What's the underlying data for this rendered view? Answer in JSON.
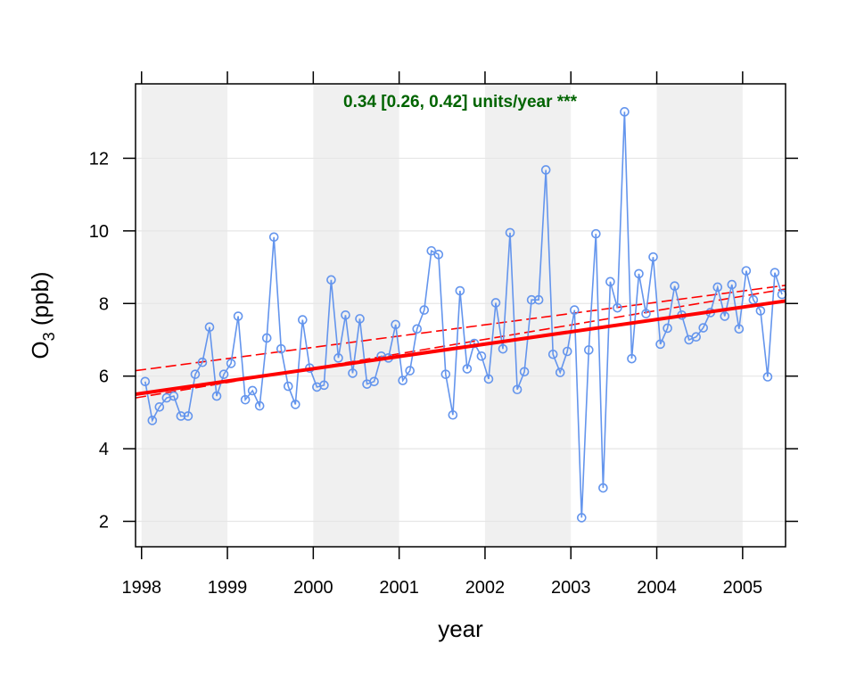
{
  "chart_data": {
    "type": "line",
    "xlabel": "year",
    "ylabel": "O",
    "ylabel_sub": "3",
    "ylabel_unit": " (ppb)",
    "xlim": [
      1997.93,
      2005.5
    ],
    "ylim": [
      1.3,
      14.05
    ],
    "x_ticks": [
      1998,
      1999,
      2000,
      2001,
      2002,
      2003,
      2004,
      2005
    ],
    "x_tick_labels": [
      "1998",
      "1999",
      "2000",
      "2001",
      "2002",
      "2003",
      "2004",
      "2005"
    ],
    "y_ticks": [
      2,
      4,
      6,
      8,
      10,
      12
    ],
    "y_tick_labels": [
      "2",
      "4",
      "6",
      "8",
      "10",
      "12"
    ],
    "grid": true,
    "shaded_year_bands": [
      [
        1998,
        1999
      ],
      [
        2000,
        2001
      ],
      [
        2002,
        2003
      ],
      [
        2004,
        2005
      ]
    ],
    "annotation": "0.34 [0.26, 0.42] units/year ***",
    "series": [
      {
        "color": "#6495ED",
        "x_start": 1998.042,
        "x_step": 0.08333,
        "values": [
          5.85,
          4.78,
          5.15,
          5.4,
          5.45,
          4.9,
          4.9,
          6.05,
          6.38,
          7.35,
          5.45,
          6.05,
          6.35,
          7.65,
          5.35,
          5.6,
          5.18,
          7.05,
          9.83,
          6.75,
          5.72,
          5.22,
          7.55,
          6.22,
          5.7,
          5.75,
          8.65,
          6.5,
          7.68,
          6.08,
          7.58,
          5.78,
          5.85,
          6.55,
          6.5,
          7.42,
          5.88,
          6.15,
          7.3,
          7.82,
          9.45,
          9.35,
          6.05,
          4.93,
          8.35,
          6.2,
          6.9,
          6.55,
          5.92,
          8.02,
          6.75,
          9.95,
          5.63,
          6.12,
          8.1,
          8.1,
          11.68,
          6.6,
          6.1,
          6.68,
          7.82,
          2.1,
          6.72,
          9.92,
          2.92,
          8.6,
          7.88,
          13.28,
          6.48,
          8.82,
          7.72,
          9.28,
          6.88,
          7.32,
          8.48,
          7.68,
          7.0,
          7.08,
          7.33,
          7.75,
          8.45,
          7.65,
          8.52,
          7.3,
          8.9,
          8.1,
          7.8,
          5.98,
          8.85,
          8.25
        ]
      }
    ],
    "trend": {
      "color": "#FF0000",
      "x": [
        1997.93,
        2005.5
      ],
      "fit": [
        5.5,
        8.07
      ],
      "lower": [
        5.4,
        8.4
      ],
      "upper": [
        6.15,
        8.5
      ]
    },
    "colors": {
      "band": "#F0F0F0",
      "grid": "#E6E6E6",
      "annotation": "#006400"
    }
  }
}
